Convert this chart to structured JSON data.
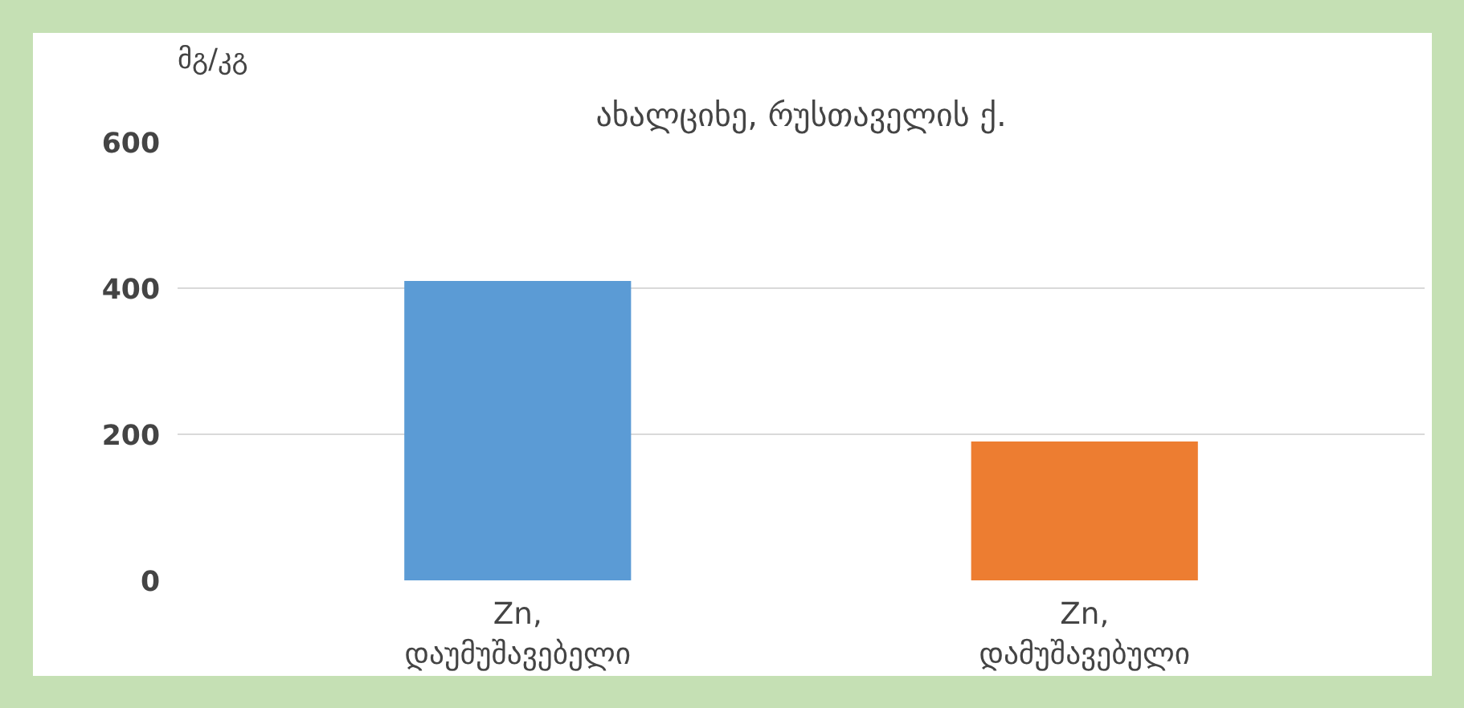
{
  "chart_data": {
    "type": "bar",
    "title": "ახალციხე, რუსთაველის ქ.",
    "ylabel": "მგ/კგ",
    "categories": [
      "Zn,\nდაუმუშავებელი",
      "Zn,\nდამუშავებული"
    ],
    "values": [
      410,
      190
    ],
    "colors": [
      "#5b9bd5",
      "#ed7d31"
    ],
    "ylim": [
      0,
      600
    ],
    "yticks": [
      0,
      200,
      400,
      600
    ],
    "grid": "y"
  }
}
